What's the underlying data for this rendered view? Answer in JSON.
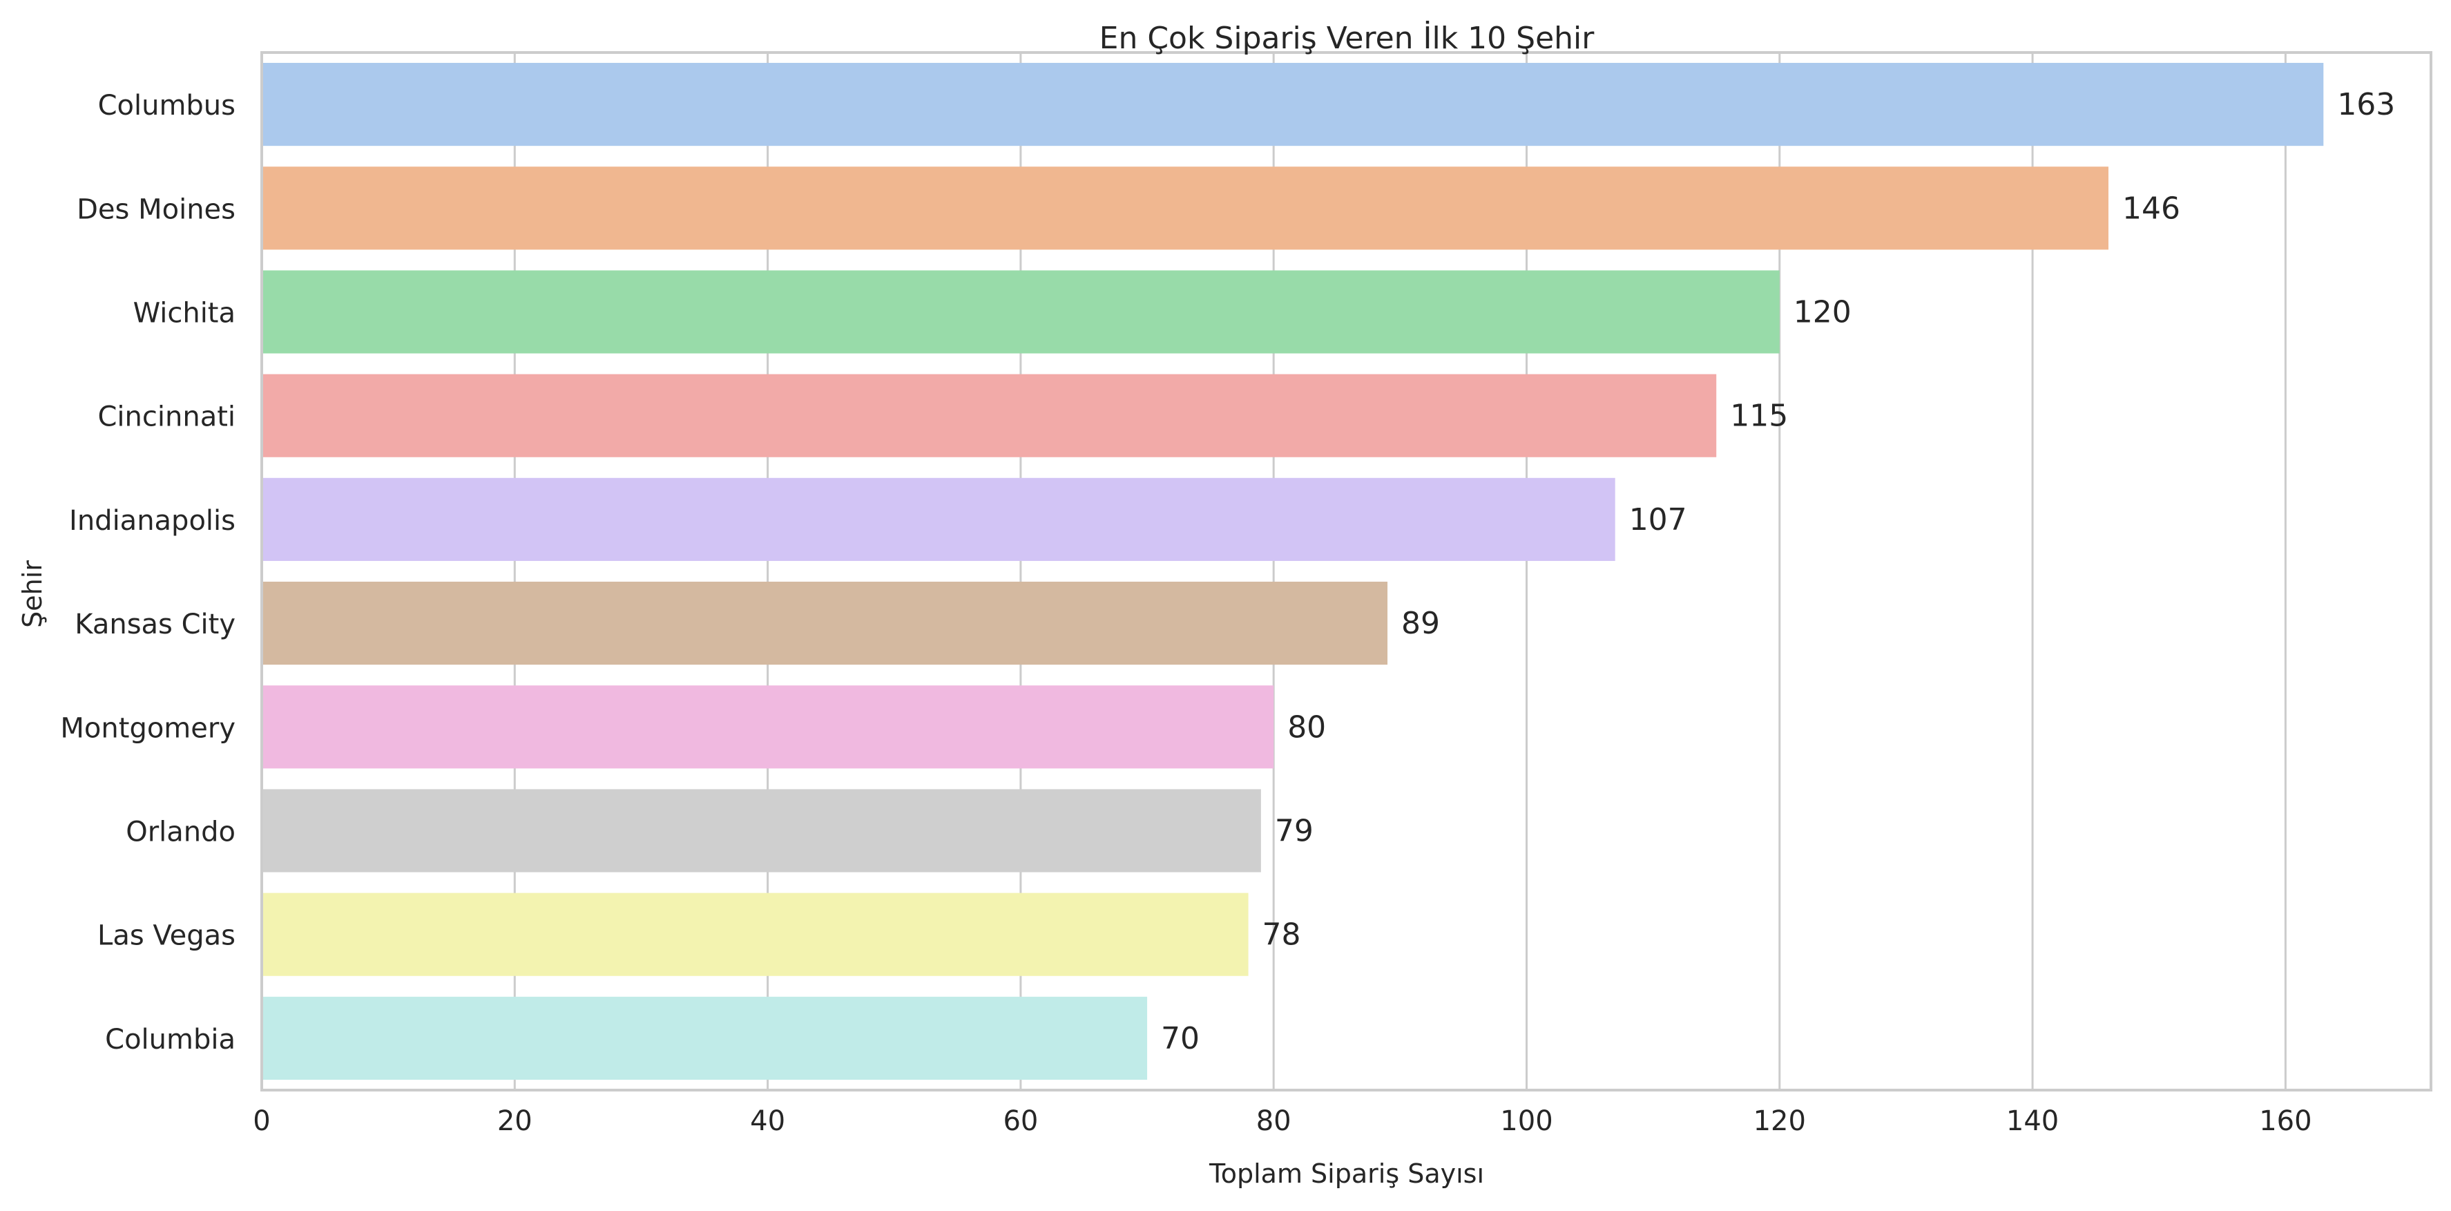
{
  "chart_data": {
    "type": "bar",
    "orientation": "horizontal",
    "title": "En Çok Sipariş Veren İlk 10 Şehir",
    "xlabel": "Toplam Sipariş Sayısı",
    "ylabel": "Şehir",
    "categories": [
      "Columbus",
      "Des Moines",
      "Wichita",
      "Cincinnati",
      "Indianapolis",
      "Kansas City",
      "Montgomery",
      "Orlando",
      "Las Vegas",
      "Columbia"
    ],
    "values": [
      163,
      146,
      120,
      115,
      107,
      89,
      80,
      79,
      78,
      70
    ],
    "data_labels": [
      "163",
      "146",
      "120",
      "115",
      "107",
      "89",
      "80",
      "79",
      "78",
      "70"
    ],
    "colors": [
      "#abc9ed",
      "#f0b790",
      "#98dba9",
      "#f2aaa8",
      "#d2c4f5",
      "#d4b9a0",
      "#f0b9e0",
      "#cfcfcf",
      "#f3f3b0",
      "#c0ebe8"
    ],
    "xlim": [
      0,
      171.5
    ],
    "x_ticks": [
      0,
      20,
      40,
      60,
      80,
      100,
      120,
      140,
      160
    ],
    "x_tick_labels": [
      "0",
      "20",
      "40",
      "60",
      "80",
      "100",
      "120",
      "140",
      "160"
    ],
    "grid": true,
    "grid_axis": "x"
  }
}
